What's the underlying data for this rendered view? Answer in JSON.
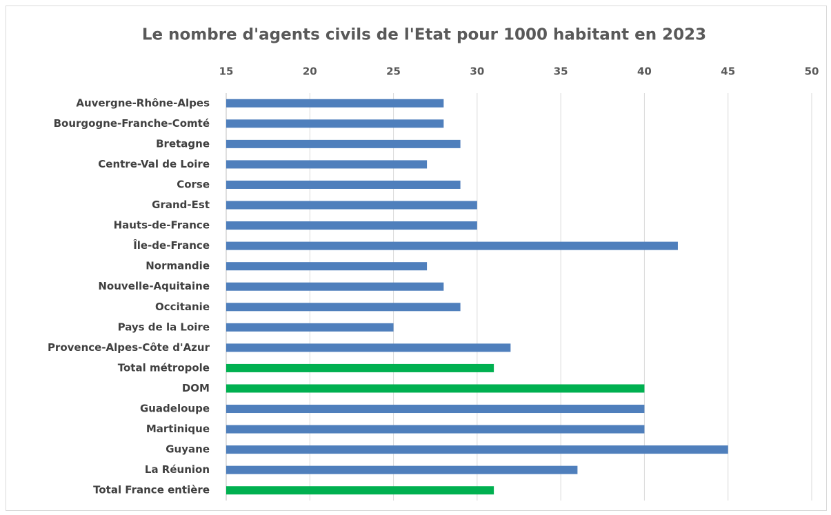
{
  "chart_data": {
    "type": "bar",
    "orientation": "horizontal",
    "title": "Le nombre d'agents civils de l'Etat pour 1000 habitant en 2023",
    "categories": [
      "Auvergne-Rhône-Alpes",
      "Bourgogne-Franche-Comté",
      "Bretagne",
      "Centre-Val de Loire",
      "Corse",
      "Grand-Est",
      "Hauts-de-France",
      "Île-de-France",
      "Normandie",
      "Nouvelle-Aquitaine",
      "Occitanie",
      "Pays de la Loire",
      "Provence-Alpes-Côte d'Azur",
      "Total métropole",
      "DOM",
      "Guadeloupe",
      "Martinique",
      "Guyane",
      "La Réunion",
      "Total France entière"
    ],
    "values": [
      28,
      28,
      29,
      27,
      29,
      30,
      30,
      42,
      27,
      28,
      29,
      25,
      32,
      31,
      40,
      40,
      40,
      45,
      36,
      31
    ],
    "colors": [
      "#4f7fbc",
      "#4f7fbc",
      "#4f7fbc",
      "#4f7fbc",
      "#4f7fbc",
      "#4f7fbc",
      "#4f7fbc",
      "#4f7fbc",
      "#4f7fbc",
      "#4f7fbc",
      "#4f7fbc",
      "#4f7fbc",
      "#4f7fbc",
      "#00b050",
      "#00b050",
      "#4f7fbc",
      "#4f7fbc",
      "#4f7fbc",
      "#4f7fbc",
      "#00b050"
    ],
    "xlim": [
      15,
      50
    ],
    "xticks": [
      15,
      20,
      25,
      30,
      35,
      40,
      45,
      50
    ],
    "grid": true
  }
}
